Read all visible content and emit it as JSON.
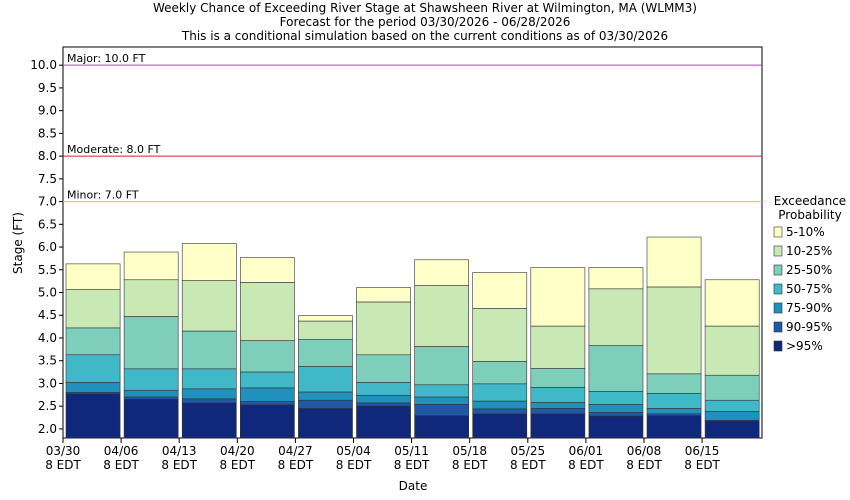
{
  "chart_data": {
    "type": "bar",
    "title_lines": [
      "Weekly Chance of Exceeding River Stage at Shawsheen River at Wilmington, MA (WLMM3)",
      "Forecast for the period 03/30/2026 - 06/28/2026",
      "This is a conditional simulation based on the current conditions as of 03/30/2026"
    ],
    "xlabel": "Date",
    "ylabel": "Stage (FT)",
    "ylim": [
      1.8,
      10.4
    ],
    "yticks": [
      "2.0",
      "2.5",
      "3.0",
      "3.5",
      "4.0",
      "4.5",
      "5.0",
      "5.5",
      "6.0",
      "6.5",
      "7.0",
      "7.5",
      "8.0",
      "8.5",
      "9.0",
      "9.5",
      "10.0"
    ],
    "xticks": [
      {
        "date": "03/30",
        "sub": "8 EDT"
      },
      {
        "date": "04/06",
        "sub": "8 EDT"
      },
      {
        "date": "04/13",
        "sub": "8 EDT"
      },
      {
        "date": "04/20",
        "sub": "8 EDT"
      },
      {
        "date": "04/27",
        "sub": "8 EDT"
      },
      {
        "date": "05/04",
        "sub": "8 EDT"
      },
      {
        "date": "05/11",
        "sub": "8 EDT"
      },
      {
        "date": "05/18",
        "sub": "8 EDT"
      },
      {
        "date": "05/25",
        "sub": "8 EDT"
      },
      {
        "date": "06/01",
        "sub": "8 EDT"
      },
      {
        "date": "06/08",
        "sub": "8 EDT"
      },
      {
        "date": "06/15",
        "sub": "8 EDT"
      }
    ],
    "thresholds": [
      {
        "label": "Major: 10.0 FT",
        "value": 10.0,
        "color": "#b040c0"
      },
      {
        "label": "Moderate: 8.0 FT",
        "value": 8.0,
        "color": "#d0203a"
      },
      {
        "label": "Minor: 7.0 FT",
        "value": 7.0,
        "color": "#e8c020"
      }
    ],
    "legend_title": [
      "Exceedance",
      "Probability"
    ],
    "legend_position": "right",
    "bands": [
      {
        "name": "5-10%",
        "color": "#ffffc8"
      },
      {
        "name": "10-25%",
        "color": "#c8e8b4"
      },
      {
        "name": "25-50%",
        "color": "#7ecebc"
      },
      {
        "name": "50-75%",
        "color": "#40b8c8"
      },
      {
        "name": "75-90%",
        "color": "#2090bc"
      },
      {
        "name": "90-95%",
        "color": "#2058a8"
      },
      {
        "name": ">95%",
        "color": "#10287c"
      }
    ],
    "weeks": [
      {
        "week": "03/30",
        "levels": [
          5.63,
          5.07,
          4.22,
          3.63,
          3.02,
          2.8,
          2.77
        ]
      },
      {
        "week": "04/06",
        "levels": [
          5.89,
          5.28,
          4.47,
          3.32,
          2.85,
          2.7,
          2.65
        ]
      },
      {
        "week": "04/13",
        "levels": [
          6.08,
          5.26,
          4.15,
          3.32,
          2.88,
          2.66,
          2.57
        ]
      },
      {
        "week": "04/20",
        "levels": [
          5.77,
          5.22,
          3.94,
          3.25,
          2.9,
          2.6,
          2.53
        ]
      },
      {
        "week": "04/27",
        "levels": [
          4.49,
          4.37,
          3.97,
          3.37,
          2.81,
          2.63,
          2.45
        ]
      },
      {
        "week": "05/04",
        "levels": [
          5.11,
          4.79,
          3.63,
          3.02,
          2.74,
          2.57,
          2.5
        ]
      },
      {
        "week": "05/11",
        "levels": [
          5.72,
          5.15,
          3.81,
          2.97,
          2.7,
          2.54,
          2.29
        ]
      },
      {
        "week": "05/18",
        "levels": [
          5.44,
          4.65,
          3.48,
          2.99,
          2.61,
          2.44,
          2.33
        ]
      },
      {
        "week": "05/25",
        "levels": [
          5.55,
          4.26,
          3.33,
          2.91,
          2.58,
          2.45,
          2.33
        ]
      },
      {
        "week": "06/01",
        "levels": [
          5.55,
          5.08,
          3.83,
          2.82,
          2.54,
          2.36,
          2.28
        ]
      },
      {
        "week": "06/08",
        "levels": [
          6.22,
          5.12,
          3.21,
          2.78,
          2.45,
          2.33,
          2.29
        ]
      },
      {
        "week": "06/15",
        "levels": [
          5.28,
          4.26,
          3.18,
          2.63,
          2.38,
          2.19,
          2.17
        ]
      }
    ]
  }
}
